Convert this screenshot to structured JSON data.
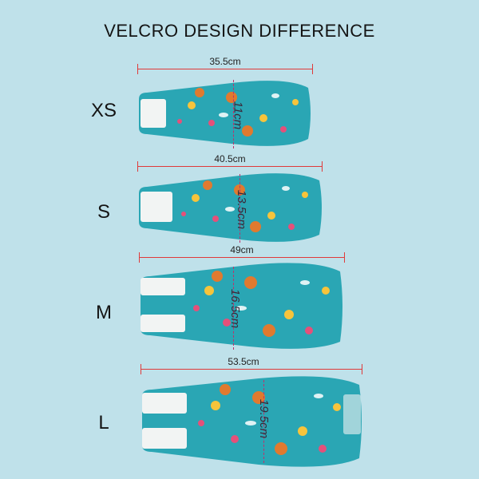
{
  "title": "VELCRO DESIGN DIFFERENCE",
  "colors": {
    "background": "#bfe1ea",
    "fabric": "#2aa6b4",
    "fabric_dark": "#1e8d9b",
    "velcro": "#f2f4f3",
    "dimension_line": "#e03a3a"
  },
  "sizes": [
    {
      "label": "XS",
      "width": "35.5cm",
      "height": "11cm"
    },
    {
      "label": "S",
      "width": "40.5cm",
      "height": "13.5cm"
    },
    {
      "label": "M",
      "width": "49cm",
      "height": "16.5cm"
    },
    {
      "label": "L",
      "width": "53.5cm",
      "height": "19.5cm"
    }
  ]
}
